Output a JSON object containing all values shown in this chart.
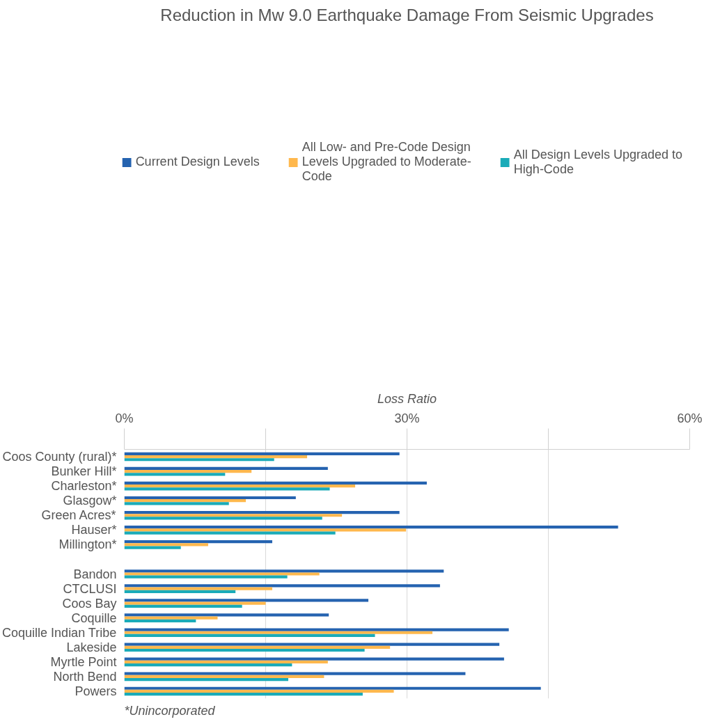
{
  "chart_data": {
    "type": "bar",
    "orientation": "horizontal",
    "title": "Reduction in Mw 9.0 Earthquake Damage From Seismic Upgrades",
    "xlabel": "Loss Ratio",
    "categories": [
      "Coos County (rural)*",
      "Bunker Hill*",
      "Charleston*",
      "Glasgow*",
      "Green Acres*",
      "Hauser*",
      "Millington*",
      null,
      "Bandon",
      "CTCLUSI",
      "Coos Bay",
      "Coquille",
      "Coquille Indian Tribe",
      "Lakeside",
      "Myrtle Point",
      "North Bend",
      "Powers"
    ],
    "series": [
      {
        "name": "Current Design Levels",
        "color": "#2563b0",
        "values": [
          29.2,
          21.6,
          32.1,
          18.2,
          29.2,
          52.4,
          15.7,
          null,
          33.9,
          33.5,
          25.9,
          21.7,
          40.8,
          39.8,
          40.3,
          36.2,
          44.2
        ]
      },
      {
        "name": "All Low- and Pre-Code Design Levels Upgraded to Moderate-Code",
        "color": "#ffb84d",
        "values": [
          19.4,
          13.5,
          24.5,
          12.9,
          23.1,
          29.9,
          8.9,
          null,
          20.7,
          15.7,
          15.0,
          9.9,
          32.7,
          28.2,
          21.6,
          21.2,
          28.6
        ]
      },
      {
        "name": "All Design Levels Upgraded to High-Code",
        "color": "#1aabb8",
        "values": [
          15.9,
          10.7,
          21.8,
          11.1,
          21.0,
          22.4,
          6.0,
          null,
          17.3,
          11.8,
          12.5,
          7.6,
          26.6,
          25.5,
          17.8,
          17.4,
          25.3
        ]
      }
    ],
    "xlim": [
      0,
      60
    ],
    "xticks": [
      {
        "value": 0,
        "label": "0%"
      },
      {
        "value": 15,
        "label": null
      },
      {
        "value": 30,
        "label": "30%"
      },
      {
        "value": 45,
        "label": null
      },
      {
        "value": 60,
        "label": "60%"
      }
    ],
    "grid": "x",
    "legend": "top",
    "annotations": [
      "*Unincorporated"
    ]
  }
}
